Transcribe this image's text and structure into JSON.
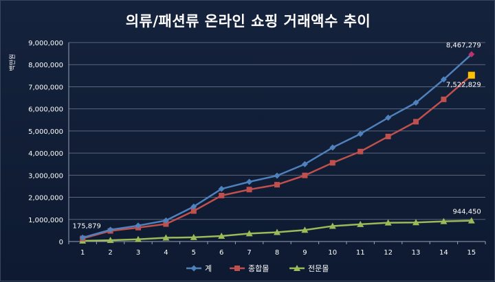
{
  "chart_data": {
    "type": "line",
    "title": "의류/패션류 온라인 쇼핑 거래액수 추이",
    "ylabel": "백만원",
    "xlabel": "",
    "x": [
      1,
      2,
      3,
      4,
      5,
      6,
      7,
      8,
      9,
      10,
      11,
      12,
      13,
      14,
      15
    ],
    "x_ticks": [
      "1",
      "2",
      "3",
      "4",
      "5",
      "6",
      "7",
      "8",
      "9",
      "10",
      "11",
      "12",
      "13",
      "14",
      "15"
    ],
    "ylim": [
      0,
      9000000
    ],
    "y_ticks": [
      "0",
      "1,000,000",
      "2,000,000",
      "3,000,000",
      "4,000,000",
      "5,000,000",
      "6,000,000",
      "7,000,000",
      "8,000,000",
      "9,000,000"
    ],
    "grid": true,
    "legend_position": "bottom",
    "series": [
      {
        "name": "계",
        "color": "#4f81bd",
        "marker": "diamond",
        "values": [
          175879,
          530000,
          720000,
          950000,
          1580000,
          2380000,
          2700000,
          2980000,
          3500000,
          4250000,
          4870000,
          5600000,
          6280000,
          7330000,
          8467279
        ]
      },
      {
        "name": "종합몰",
        "color": "#c0504d",
        "marker": "square",
        "values": [
          140000,
          480000,
          630000,
          790000,
          1380000,
          2080000,
          2350000,
          2570000,
          2990000,
          3560000,
          4070000,
          4750000,
          5420000,
          6430000,
          7522829
        ]
      },
      {
        "name": "전문몰",
        "color": "#9bbb59",
        "marker": "triangle",
        "values": [
          30000,
          60000,
          100000,
          170000,
          190000,
          250000,
          360000,
          420000,
          520000,
          700000,
          780000,
          850000,
          860000,
          910000,
          944450
        ]
      }
    ],
    "annotations": [
      {
        "series": 0,
        "index": 0,
        "text": "175,879",
        "position": "above"
      },
      {
        "series": 0,
        "index": 14,
        "text": "8,467,279",
        "position": "above-left"
      },
      {
        "series": 1,
        "index": 14,
        "text": "7,522,829",
        "position": "below"
      },
      {
        "series": 2,
        "index": 14,
        "text": "944,450",
        "position": "above"
      }
    ],
    "highlight_last": [
      {
        "series": 0,
        "color": "#c0306a"
      },
      {
        "series": 1,
        "color": "#ffc000"
      }
    ]
  }
}
